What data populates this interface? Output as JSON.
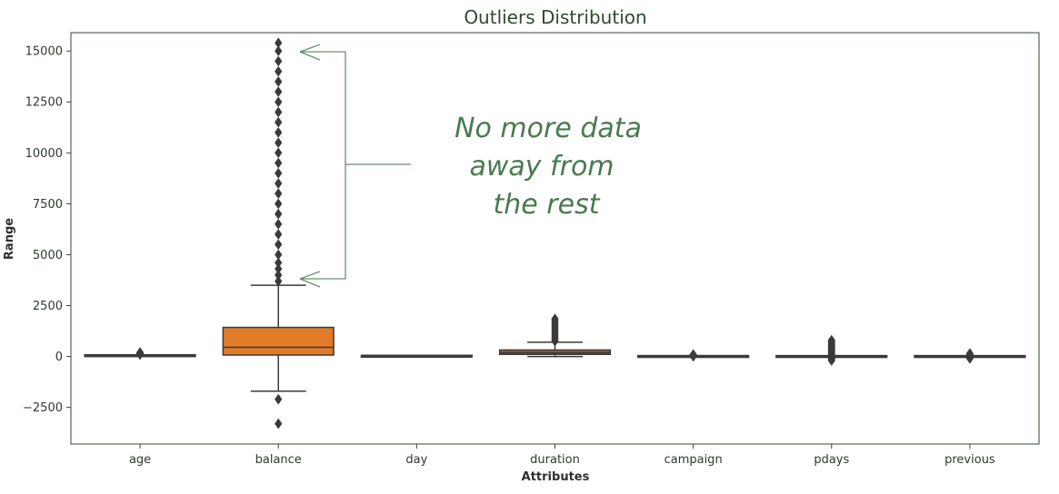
{
  "chart_data": {
    "type": "box",
    "title": "Outliers Distribution",
    "xlabel": "Attributes",
    "ylabel": "Range",
    "ylim": [
      -4300,
      15900
    ],
    "yticks": [
      -2500,
      0,
      2500,
      5000,
      7500,
      10000,
      12500,
      15000
    ],
    "ytick_labels": [
      "−2500",
      "0",
      "2500",
      "5000",
      "7500",
      "10000",
      "12500",
      "15000"
    ],
    "grid": false,
    "categories": [
      "age",
      "balance",
      "day",
      "duration",
      "campaign",
      "pdays",
      "previous"
    ],
    "boxes": [
      {
        "name": "age",
        "whisker_low": 18,
        "q1": 33,
        "median": 39,
        "q3": 48,
        "whisker_high": 70,
        "outliers": [
          95,
          110,
          130,
          150,
          170,
          200
        ],
        "color": "#c44e52"
      },
      {
        "name": "balance",
        "whisker_low": -1700,
        "q1": 72,
        "median": 448,
        "q3": 1428,
        "whisker_high": 3500,
        "outliers": [
          -2100,
          -3300,
          3700,
          4000,
          4300,
          4600,
          5000,
          5500,
          6000,
          6500,
          7000,
          7500,
          8000,
          8500,
          9000,
          9500,
          10000,
          10500,
          11000,
          11500,
          12000,
          12500,
          13000,
          13500,
          14000,
          14500,
          15000,
          15400
        ],
        "color": "#e07b2a"
      },
      {
        "name": "day",
        "whisker_low": 1,
        "q1": 8,
        "median": 16,
        "q3": 21,
        "whisker_high": 31,
        "outliers": [],
        "color": "#55a868"
      },
      {
        "name": "duration",
        "whisker_low": 0,
        "q1": 104,
        "median": 180,
        "q3": 319,
        "whisker_high": 700,
        "outliers": [
          750,
          850,
          950,
          1050,
          1150,
          1250,
          1350,
          1450,
          1550,
          1650,
          1750,
          1850
        ],
        "color": "#8c613c"
      },
      {
        "name": "campaign",
        "whisker_low": 1,
        "q1": 1,
        "median": 2,
        "q3": 3,
        "whisker_high": 6,
        "outliers": [
          10,
          20,
          40,
          60,
          80,
          100
        ],
        "color": "#4c72b0"
      },
      {
        "name": "pdays",
        "whisker_low": -1,
        "q1": -1,
        "median": -1,
        "q3": -1,
        "whisker_high": -1,
        "outliers": [
          -200,
          -150,
          -100,
          -50,
          50,
          100,
          150,
          200,
          250,
          300,
          350,
          400,
          450,
          500,
          550,
          600,
          650,
          700,
          750,
          800
        ],
        "color": "#8172b2"
      },
      {
        "name": "previous",
        "whisker_low": 0,
        "q1": 0,
        "median": 0,
        "q3": 0,
        "whisker_high": 0,
        "outliers": [
          -100,
          -50,
          30,
          60,
          90,
          120,
          150
        ],
        "color": "#da8bc3"
      }
    ],
    "annotation": {
      "lines": [
        "No more data",
        "away from",
        "the rest"
      ]
    }
  }
}
